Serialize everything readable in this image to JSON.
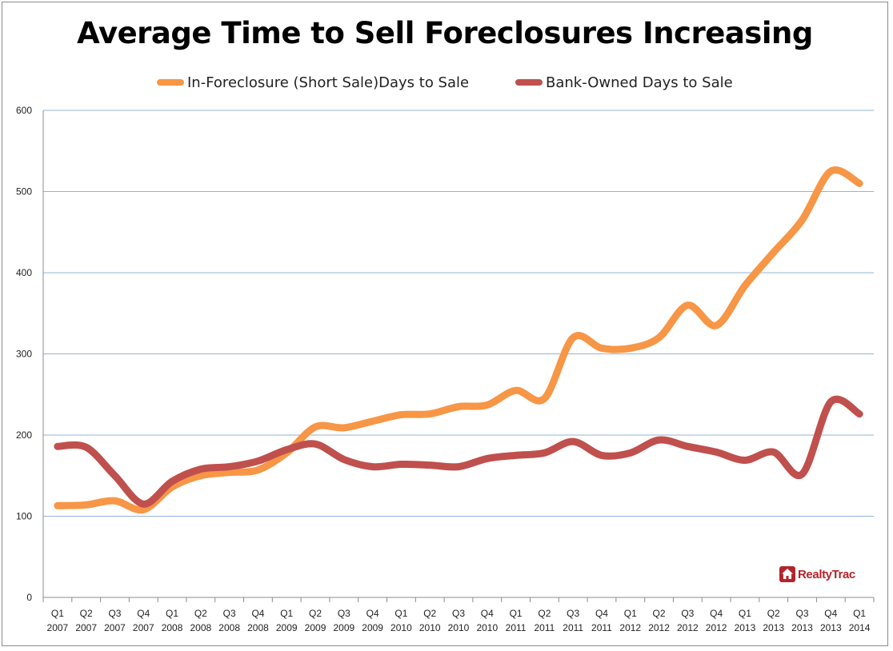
{
  "chart_data": {
    "type": "line",
    "title": "Average Time to Sell Foreclosures Increasing",
    "xlabel": "",
    "ylabel": "",
    "ylim": [
      0,
      600
    ],
    "yticks": [
      0,
      100,
      200,
      300,
      400,
      500,
      600
    ],
    "grid": true,
    "legend_position": "top",
    "categories": [
      [
        "Q1",
        "2007"
      ],
      [
        "Q2",
        "2007"
      ],
      [
        "Q3",
        "2007"
      ],
      [
        "Q4",
        "2007"
      ],
      [
        "Q1",
        "2008"
      ],
      [
        "Q2",
        "2008"
      ],
      [
        "Q3",
        "2008"
      ],
      [
        "Q4",
        "2008"
      ],
      [
        "Q1",
        "2009"
      ],
      [
        "Q2",
        "2009"
      ],
      [
        "Q3",
        "2009"
      ],
      [
        "Q4",
        "2009"
      ],
      [
        "Q1",
        "2010"
      ],
      [
        "Q2",
        "2010"
      ],
      [
        "Q3",
        "2010"
      ],
      [
        "Q4",
        "2010"
      ],
      [
        "Q1",
        "2011"
      ],
      [
        "Q2",
        "2011"
      ],
      [
        "Q3",
        "2011"
      ],
      [
        "Q4",
        "2011"
      ],
      [
        "Q1",
        "2012"
      ],
      [
        "Q2",
        "2012"
      ],
      [
        "Q3",
        "2012"
      ],
      [
        "Q4",
        "2012"
      ],
      [
        "Q1",
        "2013"
      ],
      [
        "Q2",
        "2013"
      ],
      [
        "Q3",
        "2013"
      ],
      [
        "Q4",
        "2013"
      ],
      [
        "Q1",
        "2014"
      ]
    ],
    "series": [
      {
        "name": "In-Foreclosure (Short Sale)Days to Sale",
        "color": "#f79646",
        "values": [
          113,
          114,
          119,
          108,
          136,
          150,
          154,
          157,
          178,
          210,
          209,
          217,
          225,
          226,
          235,
          237,
          255,
          245,
          320,
          307,
          307,
          320,
          360,
          335,
          384,
          425,
          465,
          525,
          510
        ]
      },
      {
        "name": "Bank-Owned Days to Sale",
        "color": "#c0504d",
        "values": [
          186,
          185,
          150,
          115,
          143,
          158,
          161,
          168,
          182,
          189,
          170,
          161,
          164,
          163,
          161,
          171,
          175,
          178,
          192,
          175,
          178,
          194,
          186,
          179,
          169,
          179,
          152,
          241,
          226
        ]
      }
    ]
  },
  "logo": {
    "text": "RealtyTrac"
  }
}
